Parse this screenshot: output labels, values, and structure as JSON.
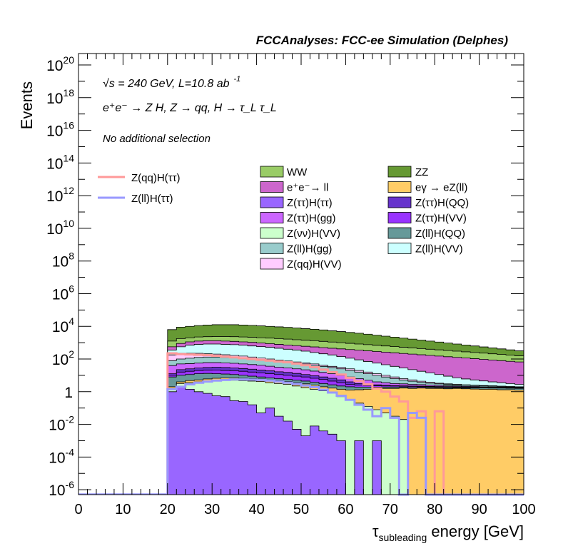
{
  "chart_data": {
    "type": "histogram",
    "title": "FCCAnalyses: FCC-ee Simulation (Delphes)",
    "xlabel": "τ_subleading energy [GeV]",
    "xlabel_main": "τ",
    "xlabel_sub": "subleading",
    "xlabel_rest": " energy [GeV]",
    "ylabel": "Events",
    "y_scale": "log",
    "xlim": [
      0,
      100
    ],
    "ylim_exponent": [
      -6.3,
      20.7
    ],
    "bin_width": 2,
    "x_ticks": [
      "0",
      "10",
      "20",
      "30",
      "40",
      "50",
      "60",
      "70",
      "80",
      "90",
      "100"
    ],
    "y_ticks": [
      {
        "base": "10",
        "exp": "20",
        "v": 20
      },
      {
        "base": "10",
        "exp": "18",
        "v": 18
      },
      {
        "base": "10",
        "exp": "16",
        "v": 16
      },
      {
        "base": "10",
        "exp": "14",
        "v": 14
      },
      {
        "base": "10",
        "exp": "12",
        "v": 12
      },
      {
        "base": "10",
        "exp": "10",
        "v": 10
      },
      {
        "base": "10",
        "exp": "8",
        "v": 8
      },
      {
        "base": "10",
        "exp": "6",
        "v": 6
      },
      {
        "base": "10",
        "exp": "4",
        "v": 4
      },
      {
        "base": "10",
        "exp": "2",
        "v": 2
      },
      {
        "base": "1",
        "exp": "",
        "v": 0
      },
      {
        "base": "10",
        "exp": "-2",
        "v": -2
      },
      {
        "base": "10",
        "exp": "-4",
        "v": -4
      },
      {
        "base": "10",
        "exp": "-6",
        "v": -6
      }
    ],
    "annotations": {
      "line1": "√s = 240 GeV, L=10.8 ab",
      "line1_exp": "-1",
      "line2": "e⁺e⁻ → Z H, Z → qq, H → τ_L τ_L",
      "line3": "No additional selection"
    },
    "stack_bin_start": 20,
    "stack_layers_log10_upper_edge": [
      {
        "name": "Z(ττ)H(ττ)",
        "color": "#9966ff",
        "values": [
          0.0,
          0.3,
          0.15,
          0.0,
          -0.1,
          -0.25,
          -0.3,
          -0.55,
          -0.6,
          -0.8,
          -1.3,
          -1.0,
          -1.5,
          -1.8,
          -2.3,
          -2.7,
          -2.1,
          -2.4,
          -2.6,
          -3.0,
          -6.4,
          -3.0,
          -6.4,
          -3.0,
          -6.4,
          -6.4,
          -6.4,
          -6.4,
          -6.4,
          -6.4,
          -6.4,
          -6.4,
          -6.4,
          -6.4,
          -6.4,
          -6.4,
          -6.4,
          -6.4,
          -6.4,
          -6.4
        ]
      },
      {
        "name": "Z(νν)H(VV)",
        "color": "#ccffcc",
        "values": [
          0.2,
          0.5,
          0.55,
          0.6,
          0.65,
          0.7,
          0.7,
          0.7,
          0.68,
          0.65,
          0.62,
          0.55,
          0.5,
          0.45,
          0.35,
          0.25,
          0.15,
          0.05,
          -0.1,
          -0.3,
          -0.5,
          -0.7,
          -0.9,
          -1.1,
          -1.3,
          -1.5,
          -1.7,
          -6.4,
          -6.4,
          -6.4,
          -6.4,
          -6.4,
          -6.4,
          -6.4,
          -6.4,
          -6.4,
          -6.4,
          -6.4,
          -6.4,
          -6.4
        ]
      },
      {
        "name": "eγ → eZ(ll)",
        "color": "#ffcc66",
        "values": [
          0.3,
          0.6,
          0.68,
          0.72,
          0.78,
          0.82,
          0.85,
          0.85,
          0.82,
          0.8,
          0.78,
          0.72,
          0.68,
          0.62,
          0.55,
          0.48,
          0.4,
          0.3,
          0.22,
          0.15,
          0.1,
          0.12,
          0.15,
          0.18,
          0.2,
          0.2,
          0.22,
          0.2,
          0.22,
          0.2,
          0.2,
          0.18,
          0.2,
          0.18,
          0.16,
          0.15,
          0.15,
          0.12,
          0.12,
          0.1
        ]
      },
      {
        "name": "Z(ll)H(QQ)",
        "color": "#669999",
        "values": [
          0.9,
          1.0,
          1.05,
          1.1,
          1.12,
          1.1,
          1.08,
          1.05,
          1.0,
          0.95,
          0.9,
          0.85,
          0.8,
          0.75,
          0.7,
          0.65,
          0.58,
          0.5,
          0.42,
          0.35,
          0.3,
          0.28,
          0.28,
          0.28,
          0.28,
          0.28,
          0.28,
          0.26,
          0.26,
          0.26,
          0.25,
          0.25,
          0.24,
          0.24,
          0.23,
          0.23,
          0.22,
          0.22,
          0.21,
          0.2
        ]
      },
      {
        "name": "Z(ττ)H(VV)",
        "color": "#9933ff",
        "values": [
          1.0,
          1.2,
          1.25,
          1.3,
          1.32,
          1.33,
          1.3,
          1.28,
          1.25,
          1.2,
          1.15,
          1.1,
          1.05,
          1.0,
          0.95,
          0.9,
          0.82,
          0.75,
          0.65,
          0.55,
          0.45,
          0.4,
          0.38,
          0.36,
          0.35,
          0.34,
          0.33,
          0.32,
          0.31,
          0.3,
          0.29,
          0.28,
          0.27,
          0.26,
          0.25,
          0.24,
          0.23,
          0.22,
          0.21,
          0.2
        ]
      },
      {
        "name": "Z(ττ)H(QQ)",
        "color": "#6633cc",
        "values": [
          1.1,
          1.35,
          1.4,
          1.45,
          1.48,
          1.5,
          1.48,
          1.45,
          1.42,
          1.38,
          1.32,
          1.28,
          1.22,
          1.18,
          1.12,
          1.05,
          0.98,
          0.9,
          0.82,
          0.72,
          0.6,
          0.5,
          0.45,
          0.42,
          0.4,
          0.38,
          0.36,
          0.35,
          0.34,
          0.33,
          0.32,
          0.31,
          0.3,
          0.29,
          0.28,
          0.27,
          0.26,
          0.25,
          0.24,
          0.23
        ]
      },
      {
        "name": "Z(ττ)H(gg)",
        "color": "#cc66ff",
        "values": [
          1.6,
          1.7,
          1.72,
          1.75,
          1.78,
          1.78,
          1.76,
          1.74,
          1.7,
          1.66,
          1.62,
          1.56,
          1.5,
          1.45,
          1.4,
          1.34,
          1.26,
          1.18,
          1.1,
          1.0,
          0.9,
          0.8,
          0.7,
          0.6,
          0.55,
          0.5,
          0.48,
          0.45,
          0.43,
          0.4,
          0.38,
          0.36,
          0.35,
          0.33,
          0.32,
          0.3,
          0.29,
          0.28,
          0.27,
          0.26
        ]
      },
      {
        "name": "Z(ll)H(gg)",
        "color": "#99cccc",
        "values": [
          1.9,
          2.0,
          2.05,
          2.1,
          2.12,
          2.12,
          2.1,
          2.08,
          2.05,
          2.0,
          1.96,
          1.9,
          1.85,
          1.8,
          1.75,
          1.7,
          1.62,
          1.55,
          1.48,
          1.4,
          1.3,
          1.2,
          1.1,
          1.0,
          0.9,
          0.8,
          0.72,
          0.64,
          0.58,
          0.52,
          0.48,
          0.45,
          0.42,
          0.4,
          0.38,
          0.36,
          0.34,
          0.32,
          0.3,
          0.28
        ]
      },
      {
        "name": "Z(qq)H(VV)",
        "color": "#ffccff",
        "values": [
          2.25,
          2.35,
          2.35,
          2.35,
          2.32,
          2.3,
          2.26,
          2.22,
          2.18,
          2.12,
          2.06,
          2.0,
          1.94,
          1.88,
          1.82,
          1.76,
          1.7,
          1.62,
          1.55,
          1.48,
          1.4,
          1.3,
          1.2,
          1.1,
          1.0,
          0.9,
          0.8,
          0.72,
          0.64,
          0.58,
          0.52,
          0.48,
          0.45,
          0.42,
          0.4,
          0.38,
          0.36,
          0.34,
          0.32,
          0.3
        ]
      },
      {
        "name": "Z(ll)H(VV)",
        "color": "#ccffff",
        "values": [
          2.55,
          2.75,
          2.85,
          2.9,
          2.92,
          2.92,
          2.9,
          2.88,
          2.85,
          2.8,
          2.76,
          2.72,
          2.66,
          2.6,
          2.55,
          2.48,
          2.4,
          2.32,
          2.25,
          2.15,
          2.05,
          1.95,
          1.85,
          1.75,
          1.65,
          1.55,
          1.45,
          1.35,
          1.25,
          1.15,
          1.05,
          0.95,
          0.85,
          0.78,
          0.72,
          0.66,
          0.6,
          0.55,
          0.5,
          0.45
        ]
      },
      {
        "name": "e⁺e⁻→ ll",
        "color": "#cc66cc",
        "values": [
          2.75,
          2.95,
          3.05,
          3.1,
          3.12,
          3.12,
          3.1,
          3.08,
          3.05,
          3.02,
          2.98,
          2.94,
          2.9,
          2.86,
          2.82,
          2.78,
          2.74,
          2.7,
          2.66,
          2.62,
          2.58,
          2.54,
          2.5,
          2.46,
          2.42,
          2.38,
          2.34,
          2.3,
          2.26,
          2.22,
          2.18,
          2.14,
          2.1,
          2.06,
          2.02,
          1.98,
          1.94,
          1.9,
          1.86,
          1.82
        ]
      },
      {
        "name": "WW",
        "color": "#99cc66",
        "values": [
          3.1,
          3.25,
          3.3,
          3.35,
          3.37,
          3.38,
          3.38,
          3.37,
          3.35,
          3.33,
          3.3,
          3.28,
          3.25,
          3.22,
          3.18,
          3.15,
          3.12,
          3.08,
          3.04,
          3.0,
          2.96,
          2.92,
          2.88,
          2.84,
          2.8,
          2.76,
          2.72,
          2.68,
          2.64,
          2.6,
          2.56,
          2.52,
          2.48,
          2.44,
          2.4,
          2.36,
          2.32,
          2.28,
          2.24,
          2.2
        ]
      },
      {
        "name": "ZZ",
        "color": "#669933",
        "values": [
          3.8,
          3.95,
          4.0,
          4.05,
          4.08,
          4.1,
          4.1,
          4.1,
          4.08,
          4.06,
          4.03,
          4.0,
          3.97,
          3.94,
          3.9,
          3.86,
          3.82,
          3.78,
          3.73,
          3.68,
          3.63,
          3.58,
          3.52,
          3.46,
          3.4,
          3.34,
          3.28,
          3.22,
          3.16,
          3.1,
          3.04,
          2.98,
          2.92,
          2.86,
          2.8,
          2.74,
          2.68,
          2.62,
          2.56,
          2.5
        ]
      }
    ],
    "signal_lines_log10": [
      {
        "name": "Z(qq)H(ττ)",
        "color": "#ff9999",
        "values": [
          2.35,
          2.3,
          2.28,
          2.26,
          2.24,
          2.2,
          2.15,
          2.1,
          2.05,
          2.0,
          1.95,
          1.9,
          1.85,
          1.8,
          1.72,
          1.62,
          1.5,
          1.35,
          1.2,
          1.05,
          0.85,
          0.65,
          0.45,
          0.2,
          0.0,
          -0.3,
          -0.6,
          -1.6,
          -1.2,
          -6.4,
          -1.2,
          -6.4,
          -6.4,
          -6.4,
          -6.4,
          -6.4,
          -6.4,
          -6.4,
          -6.4,
          -6.4
        ]
      },
      {
        "name": "Z(ll)H(ττ)",
        "color": "#9999ff",
        "values": [
          0.15,
          0.3,
          0.45,
          0.55,
          0.62,
          0.68,
          0.72,
          0.75,
          0.75,
          0.74,
          0.72,
          0.68,
          0.62,
          0.55,
          0.48,
          0.38,
          0.28,
          0.12,
          -0.05,
          -0.25,
          -0.5,
          -0.8,
          -1.1,
          -1.5,
          -1.0,
          -1.6,
          -6.4,
          -1.3,
          -1.6,
          -6.4,
          -6.4,
          -6.4,
          -6.4,
          -6.4,
          -6.4,
          -6.4,
          -6.4,
          -6.4,
          -6.4,
          -6.4
        ]
      }
    ],
    "legend": {
      "left": [
        {
          "label": "Z(qq)H(ττ)",
          "color": "#ff9999",
          "kind": "line"
        },
        {
          "label": "Z(ll)H(ττ)",
          "color": "#9999ff",
          "kind": "line"
        }
      ],
      "col1": [
        {
          "label": "WW",
          "color": "#99cc66"
        },
        {
          "label": "e⁺e⁻→ ll",
          "color": "#cc66cc"
        },
        {
          "label": "Z(ττ)H(ττ)",
          "color": "#9966ff"
        },
        {
          "label": "Z(ττ)H(gg)",
          "color": "#cc66ff"
        },
        {
          "label": "Z(νν)H(VV)",
          "color": "#ccffcc"
        },
        {
          "label": "Z(ll)H(gg)",
          "color": "#99cccc"
        },
        {
          "label": "Z(qq)H(VV)",
          "color": "#ffccff"
        }
      ],
      "col2": [
        {
          "label": "ZZ",
          "color": "#669933"
        },
        {
          "label": "eγ → eZ(ll)",
          "color": "#ffcc66"
        },
        {
          "label": "Z(ττ)H(QQ)",
          "color": "#6633cc"
        },
        {
          "label": "Z(ττ)H(VV)",
          "color": "#9933ff"
        },
        {
          "label": "Z(ll)H(QQ)",
          "color": "#669999"
        },
        {
          "label": "Z(ll)H(VV)",
          "color": "#ccffff"
        }
      ]
    }
  }
}
